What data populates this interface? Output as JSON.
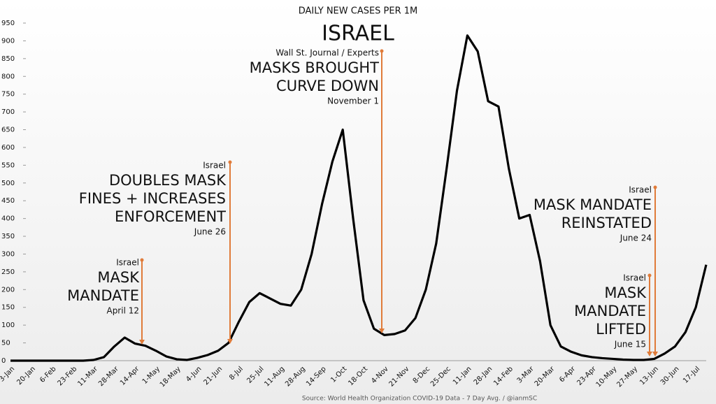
{
  "chart_data": {
    "type": "line",
    "title": "DAILY NEW CASES PER 1M",
    "subtitle": "ISRAEL",
    "source": "Source: World Health Organization COVID-19 Data - 7 Day Avg. / @ianmSC",
    "categories": [
      "3-Jan",
      null,
      "20-Jan",
      null,
      "6-Feb",
      null,
      "23-Feb",
      null,
      "11-Mar",
      null,
      "28-Mar",
      null,
      "14-Apr",
      null,
      "1-May",
      null,
      "18-May",
      null,
      "4-Jun",
      null,
      "21-Jun",
      null,
      "8-Jul",
      null,
      "25-Jul",
      null,
      "11-Aug",
      null,
      "28-Aug",
      null,
      "14-Sep",
      null,
      "1-Oct",
      null,
      "18-Oct",
      null,
      "4-Nov",
      null,
      "21-Nov",
      null,
      "8-Dec",
      null,
      "25-Dec",
      null,
      "11-Jan",
      null,
      "28-Jan",
      null,
      "14-Feb",
      null,
      "3-Mar",
      null,
      "20-Mar",
      null,
      "6-Apr",
      null,
      "23-Apr",
      null,
      "10-May",
      null,
      "27-May",
      null,
      "13-Jun",
      null,
      "30-Jun",
      null,
      "17-Jul",
      null
    ],
    "series": [
      {
        "name": "Israel",
        "color": "#000000",
        "values": [
          0,
          0,
          0,
          0,
          0,
          0,
          0,
          0,
          2,
          10,
          40,
          65,
          48,
          42,
          28,
          12,
          4,
          2,
          8,
          16,
          28,
          50,
          110,
          165,
          190,
          175,
          160,
          155,
          200,
          300,
          440,
          560,
          650,
          400,
          170,
          90,
          72,
          75,
          85,
          120,
          200,
          330,
          540,
          760,
          915,
          870,
          730,
          715,
          540,
          400,
          410,
          280,
          100,
          40,
          25,
          15,
          10,
          7,
          5,
          3,
          2,
          2,
          5,
          20,
          40,
          80,
          150,
          270
        ]
      }
    ],
    "ylim": [
      0,
      950
    ],
    "yticks": [
      0,
      50,
      100,
      150,
      200,
      250,
      300,
      350,
      400,
      450,
      500,
      550,
      600,
      650,
      700,
      750,
      800,
      850,
      900,
      950
    ],
    "annotation_color": "#e07b39",
    "annotations": [
      {
        "source": "Israel",
        "lines": [
          "MASK",
          "MANDATE"
        ],
        "date": "April 12"
      },
      {
        "source": "Israel",
        "lines": [
          "DOUBLES MASK",
          "FINES + INCREASES",
          "ENFORCEMENT"
        ],
        "date": "June 26"
      },
      {
        "source": "Wall St. Journal / Experts",
        "lines": [
          "MASKS BROUGHT",
          "CURVE DOWN"
        ],
        "date": "November 1"
      },
      {
        "source": "Israel",
        "lines": [
          "MASK MANDATE",
          "REINSTATED"
        ],
        "date": "June 24"
      },
      {
        "source": "Israel",
        "lines": [
          "MASK",
          "MANDATE",
          "LIFTED"
        ],
        "date": "June 15"
      }
    ]
  }
}
